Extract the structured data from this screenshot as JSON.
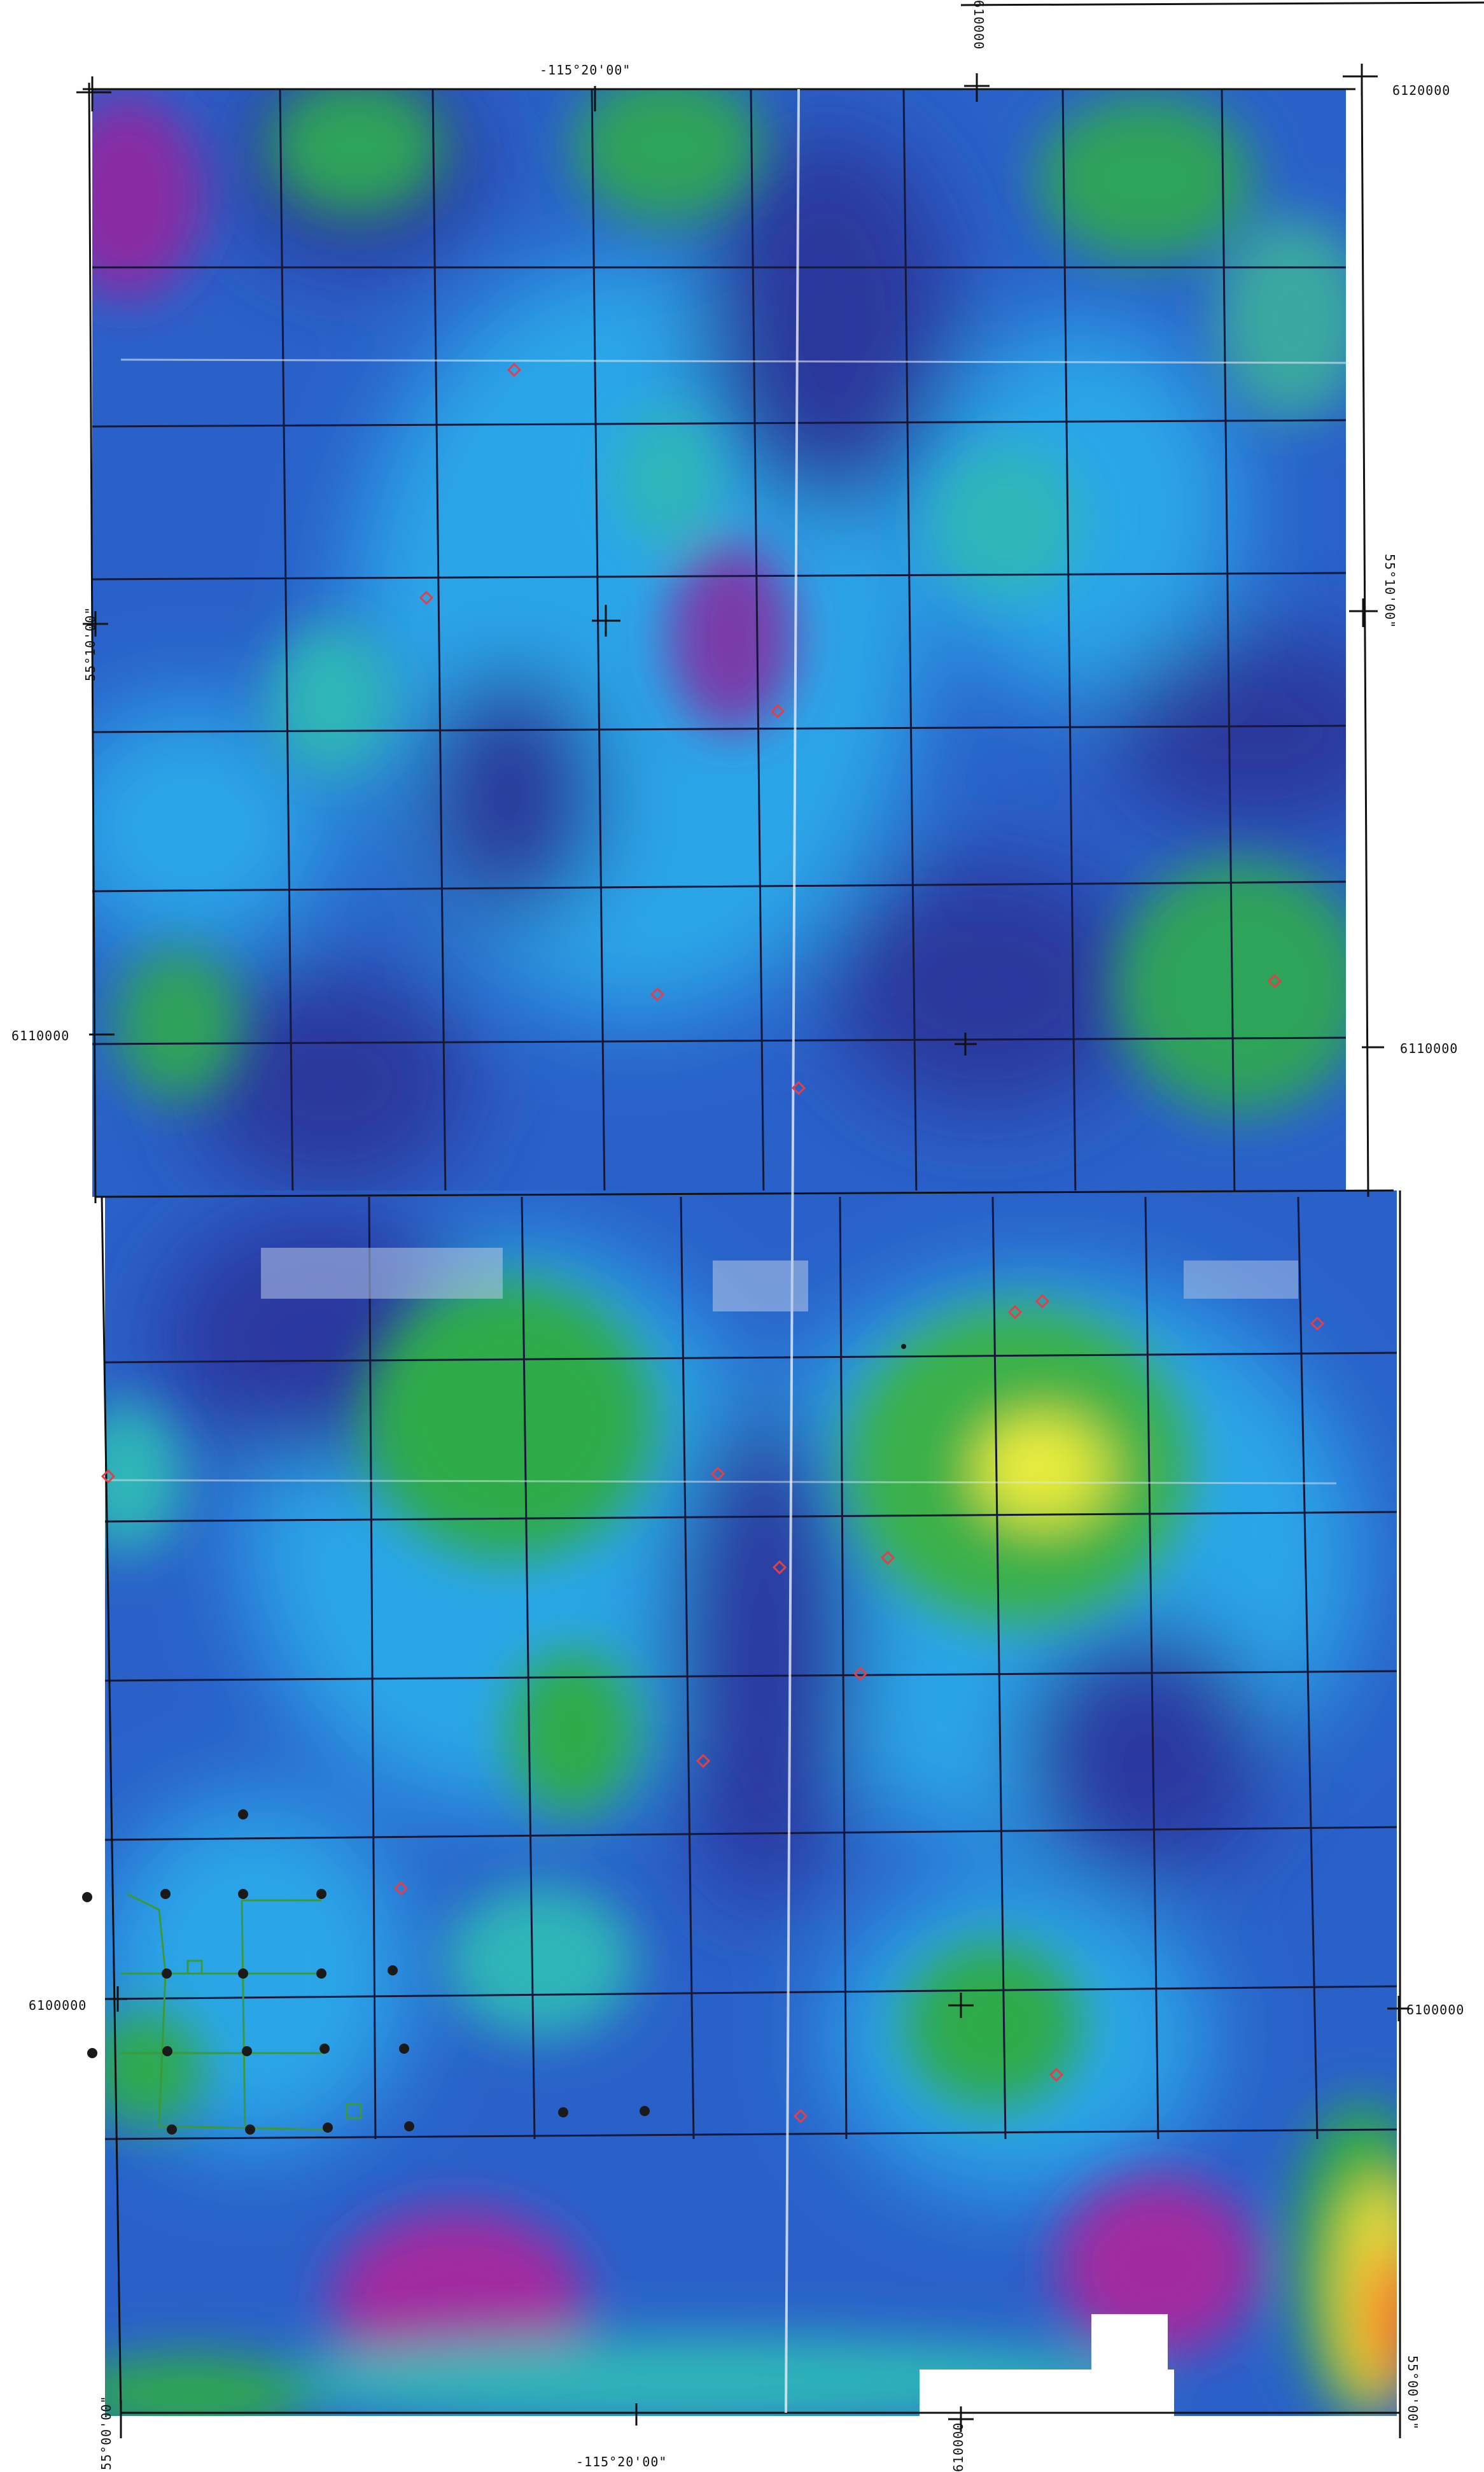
{
  "map": {
    "labels": {
      "lon_top": "-115°20'00\"",
      "lon_bottom": "-115°20'00\"",
      "lat_left_mid": "55°10'00\"",
      "lat_right_mid": "55°10'00\"",
      "lat_left_bottom": "55°00'00\"",
      "lat_right_bottom": "55°00'00\"",
      "northing_top_right": "6120000",
      "northing_left_mid": "6110000",
      "northing_right_mid": "6110000",
      "northing_left_low": "6100000",
      "northing_right_low": "6100000",
      "easting_top": "610000",
      "easting_bottom": "610000"
    },
    "colors": {
      "low": "#7a1f9c",
      "mid_low": "#2b2f9f",
      "mid": "#1e8fe0",
      "mid_high": "#2ea64a",
      "high": "#e7e73a",
      "peak": "#ff6a1a",
      "grid": "#1a1a2e",
      "stations": "#e03040"
    }
  }
}
